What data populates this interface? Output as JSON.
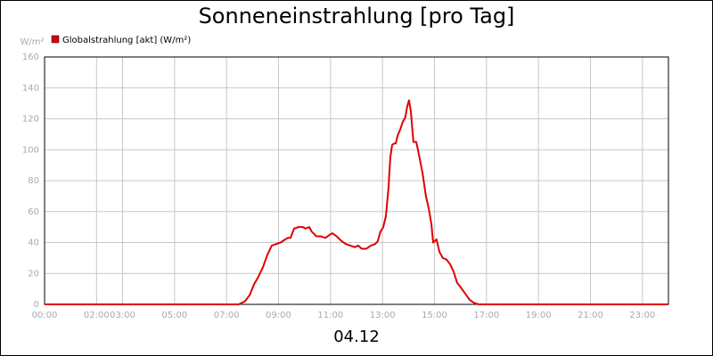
{
  "chart_data": {
    "type": "line",
    "title": "Sonneneinstrahlung [pro Tag]",
    "y_unit": "W/m²",
    "xlabel": "04.12",
    "series": [
      {
        "name": "Globalstrahlung [akt] (W/m²)",
        "color": "#e00000",
        "x": [
          0,
          7.47,
          7.71,
          7.89,
          8.06,
          8.23,
          8.4,
          8.57,
          8.74,
          8.91,
          9.08,
          9.26,
          9.36,
          9.46,
          9.6,
          9.77,
          9.94,
          10.04,
          10.18,
          10.28,
          10.46,
          10.63,
          10.8,
          10.97,
          11.07,
          11.24,
          11.42,
          11.59,
          11.76,
          11.93,
          12.07,
          12.2,
          12.38,
          12.55,
          12.72,
          12.82,
          12.92,
          13.03,
          13.13,
          13.23,
          13.3,
          13.37,
          13.44,
          13.51,
          13.58,
          13.68,
          13.78,
          13.88,
          13.95,
          14.02,
          14.09,
          14.19,
          14.3,
          14.4,
          14.54,
          14.67,
          14.78,
          14.88,
          14.95,
          15.08,
          15.19,
          15.32,
          15.46,
          15.6,
          15.74,
          15.87,
          16.01,
          16.18,
          16.35,
          16.52,
          16.7,
          24
        ],
        "values": [
          0,
          0,
          2,
          6,
          13,
          18,
          24,
          32,
          38,
          39,
          40,
          42,
          43,
          43,
          49,
          50,
          50,
          49,
          50,
          47,
          44,
          44,
          43,
          45,
          46,
          44,
          41,
          39,
          38,
          37,
          38,
          36,
          36,
          38,
          39,
          41,
          47,
          50,
          57,
          75,
          95,
          103,
          104,
          104,
          109,
          113,
          118,
          121,
          128,
          132,
          125,
          105,
          105,
          97,
          85,
          70,
          62,
          52,
          40,
          42,
          34,
          30,
          29,
          26,
          21,
          14,
          11,
          7,
          3,
          1,
          0,
          0
        ]
      }
    ],
    "xlim": [
      0,
      24
    ],
    "xticks": [
      {
        "value": 0,
        "label": "00:00"
      },
      {
        "value": 2,
        "label": "02:00"
      },
      {
        "value": 3,
        "label": "03:00"
      },
      {
        "value": 5,
        "label": "05:00"
      },
      {
        "value": 7,
        "label": "07:00"
      },
      {
        "value": 9,
        "label": "09:00"
      },
      {
        "value": 11,
        "label": "11:00"
      },
      {
        "value": 13,
        "label": "13:00"
      },
      {
        "value": 15,
        "label": "15:00"
      },
      {
        "value": 17,
        "label": "17:00"
      },
      {
        "value": 19,
        "label": "19:00"
      },
      {
        "value": 21,
        "label": "21:00"
      },
      {
        "value": 23,
        "label": "23:00"
      }
    ],
    "ylim": [
      0,
      160
    ],
    "yticks": [
      0,
      20,
      40,
      60,
      80,
      100,
      120,
      140,
      160
    ],
    "grid": true
  }
}
